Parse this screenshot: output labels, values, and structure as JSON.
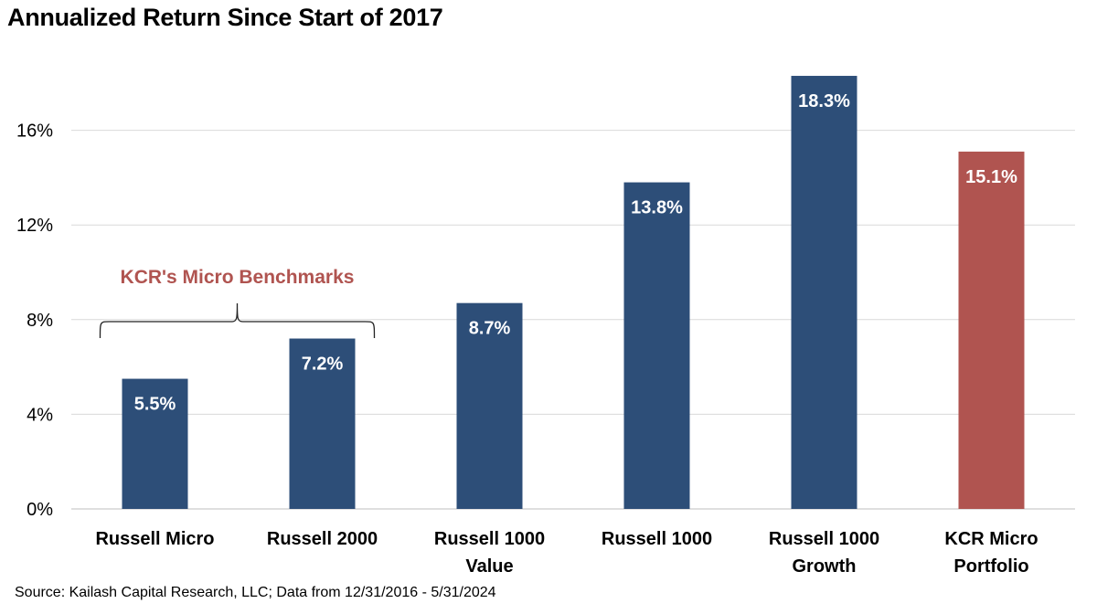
{
  "title": "Annualized Return Since Start of 2017",
  "source": "Source: Kailash Capital Research, LLC; Data from 12/31/2016 - 5/31/2024",
  "colors": {
    "bar": "#2d4e78",
    "highlight": "#b05450",
    "annotation": "#b05450",
    "grid": "#d9d9d9"
  },
  "chart_data": {
    "type": "bar",
    "title": "Annualized Return Since Start of 2017",
    "categories": [
      [
        "Russell Micro"
      ],
      [
        "Russell 2000"
      ],
      [
        "Russell 1000",
        "Value"
      ],
      [
        "Russell 1000"
      ],
      [
        "Russell 1000",
        "Growth"
      ],
      [
        "KCR Micro",
        "Portfolio"
      ]
    ],
    "values": [
      5.5,
      7.2,
      8.7,
      13.8,
      18.3,
      15.1
    ],
    "data_labels": [
      "5.5%",
      "7.2%",
      "8.7%",
      "13.8%",
      "18.3%",
      "15.1%"
    ],
    "highlight_index": 5,
    "ylim": [
      0,
      20
    ],
    "yticks": [
      0,
      4,
      8,
      12,
      16
    ],
    "ytick_labels": [
      "0%",
      "4%",
      "8%",
      "12%",
      "16%"
    ],
    "grid": true,
    "legend": "none",
    "annotation": {
      "text": "KCR's Micro Benchmarks",
      "spans": [
        0,
        1
      ]
    }
  }
}
